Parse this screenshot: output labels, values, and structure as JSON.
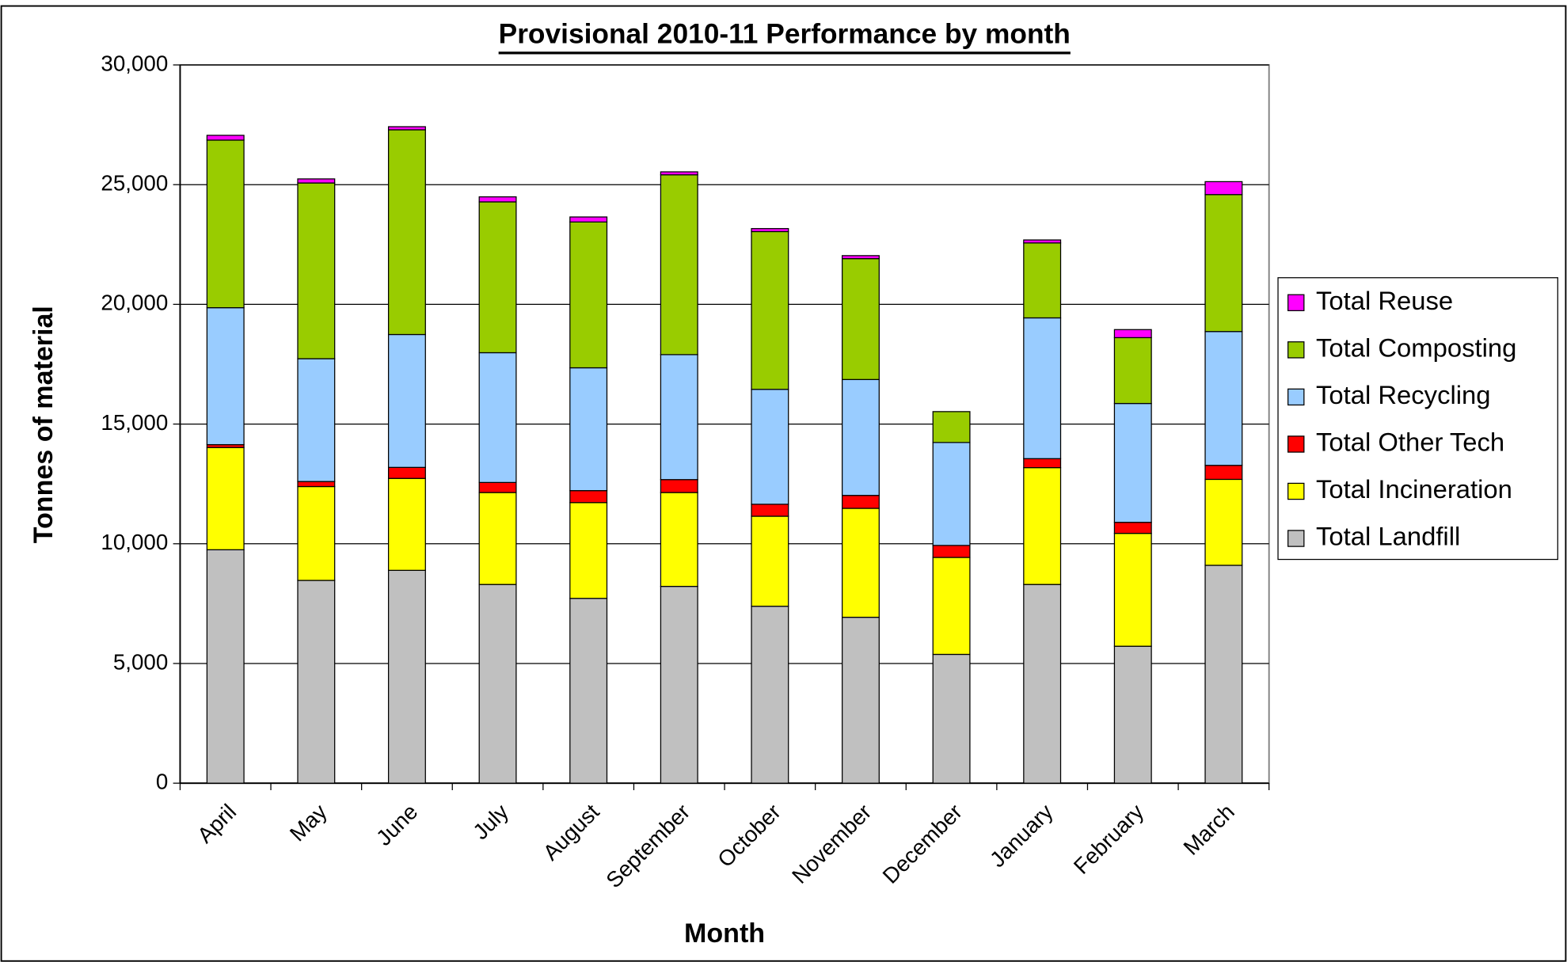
{
  "chart_data": {
    "type": "stacked_bar",
    "title": "Provisional 2010-11 Performance by month",
    "x_label": "Month",
    "y_label": "Tonnes of material",
    "categories": [
      "April",
      "May",
      "June",
      "July",
      "August",
      "September",
      "October",
      "November",
      "December",
      "January",
      "February",
      "March"
    ],
    "series": [
      {
        "name": "Total Landfill",
        "color": "#c0c0c0",
        "values": [
          9750,
          8470,
          8890,
          8300,
          7720,
          8220,
          7390,
          6930,
          5380,
          8300,
          5720,
          9100
        ]
      },
      {
        "name": "Total Incineration",
        "color": "#ffff00",
        "values": [
          4270,
          3920,
          3840,
          3840,
          4000,
          3920,
          3760,
          4550,
          4050,
          4880,
          4715,
          3590
        ]
      },
      {
        "name": "Total Other Tech",
        "color": "#ff0000",
        "values": [
          120,
          210,
          460,
          420,
          500,
          540,
          500,
          540,
          500,
          375,
          460,
          585
        ]
      },
      {
        "name": "Total Recycling",
        "color": "#99ccff",
        "values": [
          5720,
          5130,
          5550,
          5420,
          5130,
          5220,
          4800,
          4840,
          4300,
          5880,
          4965,
          5590
        ]
      },
      {
        "name": "Total Composting",
        "color": "#99cc00",
        "values": [
          7000,
          7340,
          8550,
          6300,
          6090,
          7510,
          6590,
          5050,
          1290,
          3130,
          2750,
          5720
        ]
      },
      {
        "name": "Total Reuse",
        "color": "#ff00ff",
        "values": [
          200,
          170,
          130,
          210,
          210,
          125,
          125,
          125,
          0,
          125,
          335,
          540
        ]
      }
    ],
    "ylim": [
      0,
      30000
    ],
    "yticks": [
      0,
      {
        "value": 5000,
        "label": "5,000"
      },
      {
        "value": 10000,
        "label": "10,000"
      },
      {
        "value": 15000,
        "label": "15,000"
      },
      {
        "value": 20000,
        "label": "20,000"
      },
      {
        "value": 25000,
        "label": "25,000"
      },
      {
        "value": 30000,
        "label": "30,000"
      }
    ],
    "grid": true,
    "legend": "right"
  }
}
